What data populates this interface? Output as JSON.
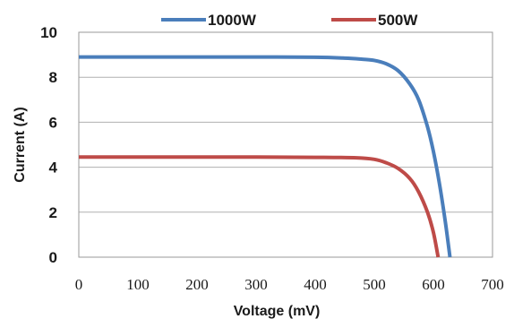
{
  "chart_data": {
    "type": "line",
    "xlabel": "Voltage (mV)",
    "ylabel": "Current (A)",
    "xlim": [
      0,
      700
    ],
    "ylim": [
      0,
      10
    ],
    "x_ticks": [
      0,
      100,
      200,
      300,
      400,
      500,
      600,
      700
    ],
    "y_ticks": [
      0,
      2,
      4,
      6,
      8,
      10
    ],
    "grid": "horizontal",
    "legend_position": "top",
    "series": [
      {
        "name": "1000W",
        "color": "#4a7ebb",
        "x": [
          0,
          100,
          200,
          300,
          400,
          450,
          480,
          500,
          520,
          540,
          560,
          575,
          590,
          600,
          610,
          620,
          628
        ],
        "y": [
          8.9,
          8.9,
          8.9,
          8.9,
          8.89,
          8.85,
          8.8,
          8.75,
          8.6,
          8.3,
          7.7,
          7.0,
          5.8,
          4.7,
          3.3,
          1.6,
          0
        ]
      },
      {
        "name": "500W",
        "color": "#be4b48",
        "x": [
          0,
          100,
          200,
          300,
          400,
          470,
          500,
          520,
          540,
          560,
          575,
          590,
          600,
          608
        ],
        "y": [
          4.45,
          4.45,
          4.45,
          4.45,
          4.44,
          4.42,
          4.35,
          4.2,
          3.95,
          3.5,
          2.9,
          2.0,
          1.1,
          0
        ]
      }
    ]
  }
}
